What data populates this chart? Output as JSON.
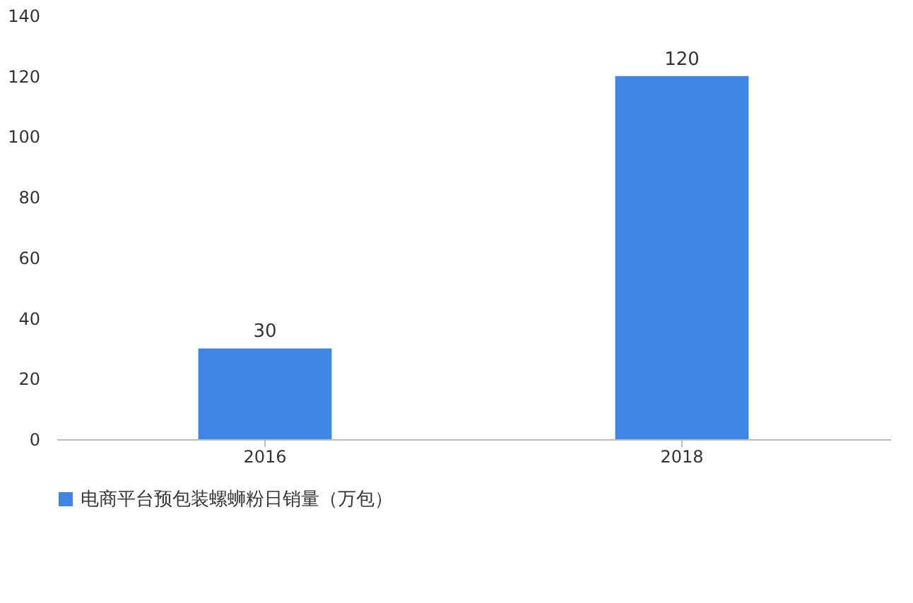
{
  "chart_data": {
    "type": "bar",
    "categories": [
      "2016",
      "2018"
    ],
    "series": [
      {
        "name": "电商平台预包装螺蛳粉日销量（万包）",
        "color": "#3f85e3",
        "values": [
          30,
          120
        ]
      }
    ],
    "ylim": [
      0,
      140
    ],
    "yticks": [
      0,
      20,
      40,
      60,
      80,
      100,
      120,
      140
    ],
    "grid": false,
    "data_labels": true,
    "legend": "bottom"
  }
}
